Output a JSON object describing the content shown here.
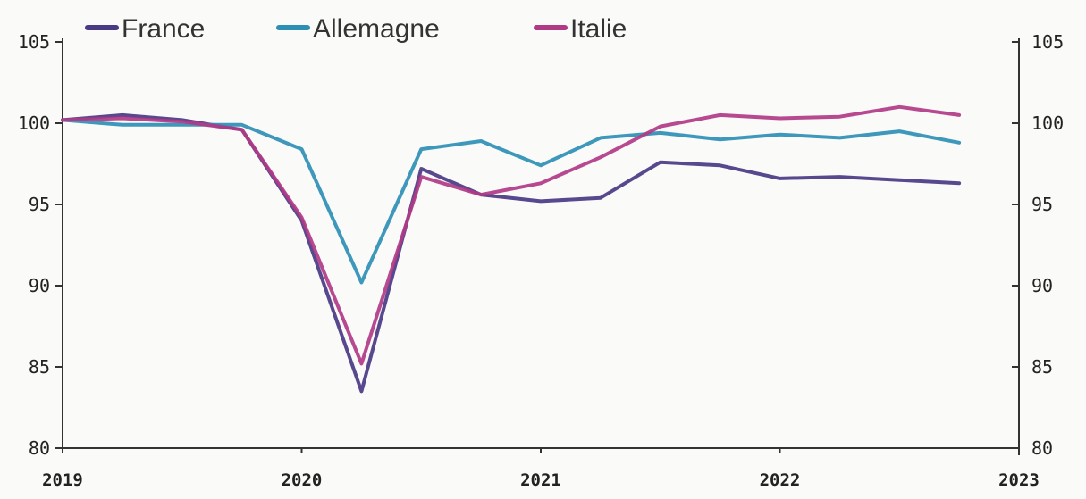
{
  "chart_data": {
    "type": "line",
    "legend_position": "top-left",
    "grid": false,
    "xlim": [
      2019,
      2023
    ],
    "ylim": [
      80,
      105
    ],
    "x_ticks": [
      "2019",
      "2020",
      "2021",
      "2022",
      "2023"
    ],
    "y_ticks_left": [
      "105",
      "100",
      "95",
      "90",
      "85",
      "80"
    ],
    "y_ticks_right": [
      "105",
      "100",
      "95",
      "90",
      "85",
      "80"
    ],
    "x": [
      2019.0,
      2019.25,
      2019.5,
      2019.75,
      2020.0,
      2020.25,
      2020.5,
      2020.75,
      2021.0,
      2021.25,
      2021.5,
      2021.75,
      2022.0,
      2022.25,
      2022.5,
      2022.75
    ],
    "series": [
      {
        "name": "France",
        "color": "#4a3a86",
        "values": [
          100.2,
          100.5,
          100.2,
          99.6,
          94.0,
          83.5,
          97.2,
          95.6,
          95.2,
          95.4,
          97.6,
          97.4,
          96.6,
          96.7,
          96.5,
          96.3
        ]
      },
      {
        "name": "Allemagne",
        "color": "#2e8fb5",
        "values": [
          100.2,
          99.9,
          99.9,
          99.9,
          98.4,
          90.2,
          98.4,
          98.9,
          97.4,
          99.1,
          99.4,
          99.0,
          99.3,
          99.1,
          99.5,
          98.8
        ]
      },
      {
        "name": "Italie",
        "color": "#b03a86",
        "values": [
          100.2,
          100.3,
          100.1,
          99.6,
          94.2,
          85.2,
          96.7,
          95.6,
          96.3,
          97.9,
          99.8,
          100.5,
          100.3,
          100.4,
          101.0,
          100.5
        ]
      }
    ]
  }
}
